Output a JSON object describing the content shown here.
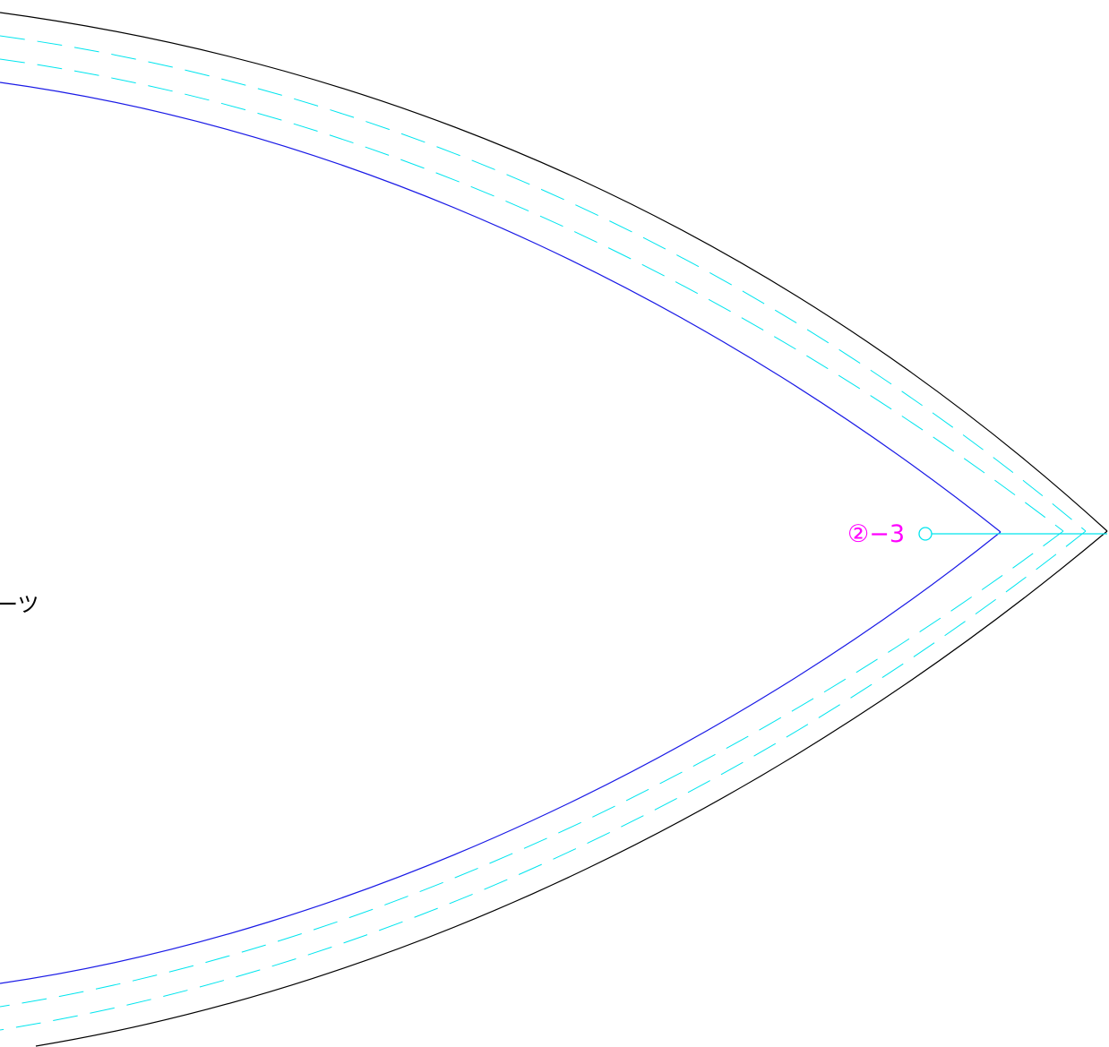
{
  "drawing": {
    "part_label": "②−3",
    "side_text": "ーツ",
    "colors": {
      "cut_line": "#000000",
      "finish_line": "#1a1ae6",
      "seam_line": "#00e5ee",
      "label": "#ff00ff",
      "background": "#ffffff"
    }
  }
}
